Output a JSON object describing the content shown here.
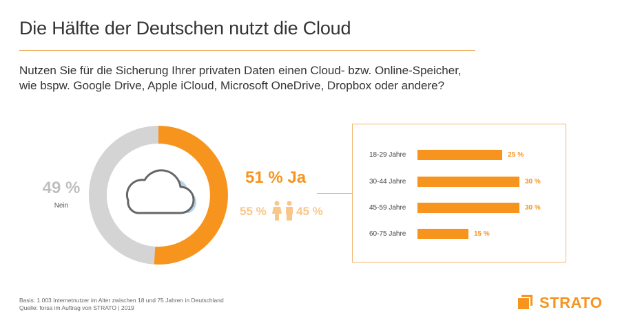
{
  "title": "Die Hälfte der Deutschen nutzt die Cloud",
  "question": {
    "line1": "Nutzen Sie für die Sicherung Ihrer privaten Daten einen Cloud- bzw. Online-Speicher,",
    "line2": "wie bspw. Google Drive, Apple iCloud, Microsoft OneDrive, Dropbox oder andere?"
  },
  "donut": {
    "no_pct": "49 %",
    "no_label": "Nein",
    "yes_pct": "51 % Ja",
    "female_pct": "55 %",
    "male_pct": "45 %"
  },
  "footer": {
    "basis": "Basis: 1.003 Internetnutzer im Alter zwischen 18 und 75 Jahren in Deutschland",
    "source": "Quelle: forsa im Auftrag von STRATO | 2019"
  },
  "logo": {
    "text": "STRATO"
  },
  "colors": {
    "accent": "#f7941d",
    "accent_light": "#f9c68a",
    "grey": "#d4d4d4",
    "cloud_blue": "#b9d3e6"
  },
  "chart_data": [
    {
      "type": "pie",
      "categories": [
        "Ja",
        "Nein"
      ],
      "values": [
        51,
        49
      ],
      "title": "Die Hälfte der Deutschen nutzt die Cloud"
    },
    {
      "type": "bar",
      "orientation": "horizontal",
      "categories": [
        "18-29 Jahre",
        "30-44 Jahre",
        "45-59 Jahre",
        "60-75 Jahre"
      ],
      "values": [
        25,
        30,
        30,
        15
      ],
      "value_labels": [
        "25 %",
        "30 %",
        "30 %",
        "15 %"
      ],
      "xlim": [
        0,
        30
      ]
    }
  ]
}
